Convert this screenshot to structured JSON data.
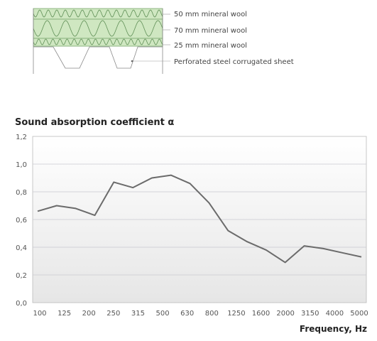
{
  "diagram": {
    "layers": [
      {
        "label": "50 mm mineral wool"
      },
      {
        "label": "70 mm mineral wool"
      },
      {
        "label": "25 mm mineral wool"
      },
      {
        "label": "Perforated steel corrugated sheet"
      }
    ],
    "colors": {
      "wool_fill": "#cfe7c1",
      "wool_stroke": "#7aa86e"
    }
  },
  "chart_data": {
    "type": "line",
    "title": "Sound absorption coefficient α",
    "xlabel": "Frequency, Hz",
    "ylabel": "",
    "x": [
      "100",
      "125",
      "160",
      "200",
      "250",
      "315",
      "400",
      "500",
      "630",
      "800",
      "1000",
      "1250",
      "1600",
      "2000",
      "2500",
      "3150",
      "4000",
      "5000"
    ],
    "x_tick_labels": [
      "100",
      "125",
      "200",
      "250",
      "315",
      "500",
      "630",
      "800",
      "1250",
      "1600",
      "2000",
      "3150",
      "4000",
      "5000"
    ],
    "series": [
      {
        "values": [
          0.66,
          0.7,
          0.68,
          0.63,
          0.87,
          0.83,
          0.9,
          0.92,
          0.86,
          0.72,
          0.52,
          0.44,
          0.38,
          0.29,
          0.41,
          0.39,
          0.36,
          0.33
        ],
        "color": "#6b6b6b"
      }
    ],
    "ylim": [
      0,
      1.2
    ],
    "y_ticks": [
      "0,0",
      "0,2",
      "0,4",
      "0,6",
      "0,8",
      "1,0",
      "1,2"
    ],
    "grid": true
  }
}
